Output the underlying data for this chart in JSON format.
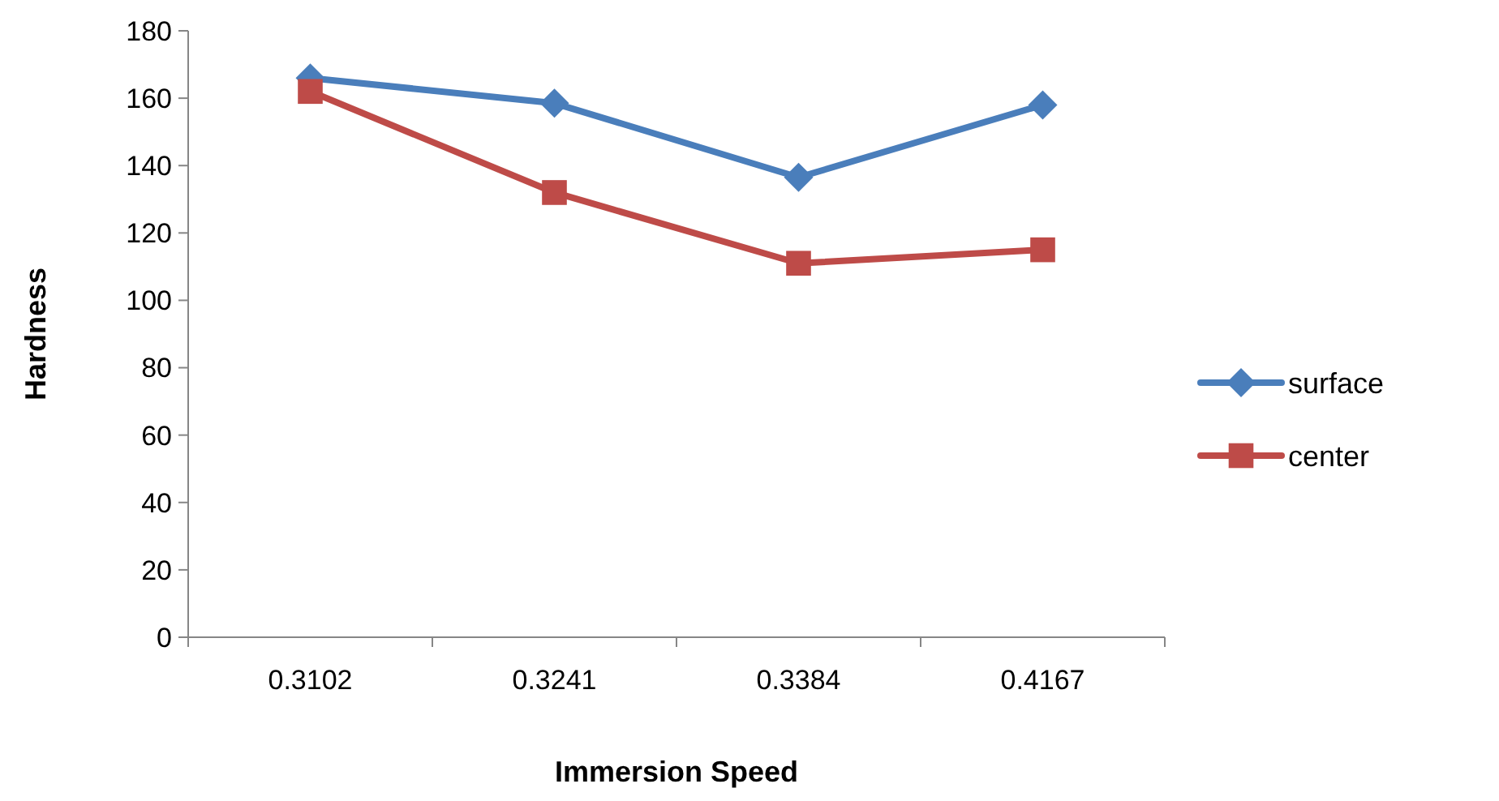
{
  "chart_data": {
    "type": "line",
    "xlabel": "Immersion Speed",
    "ylabel": "Hardness",
    "categories": [
      "0.3102",
      "0.3241",
      "0.3384",
      "0.4167"
    ],
    "series": [
      {
        "name": "surface",
        "color": "#4a7ebb",
        "marker": "diamond",
        "values": [
          166,
          158.5,
          136.5,
          158
        ]
      },
      {
        "name": "center",
        "color": "#be4b48",
        "marker": "square",
        "values": [
          162,
          132,
          111,
          115
        ]
      }
    ],
    "ylim": [
      0,
      180
    ],
    "yticks": [
      0,
      20,
      40,
      60,
      80,
      100,
      120,
      140,
      160,
      180
    ],
    "grid": false,
    "legend": "right"
  }
}
